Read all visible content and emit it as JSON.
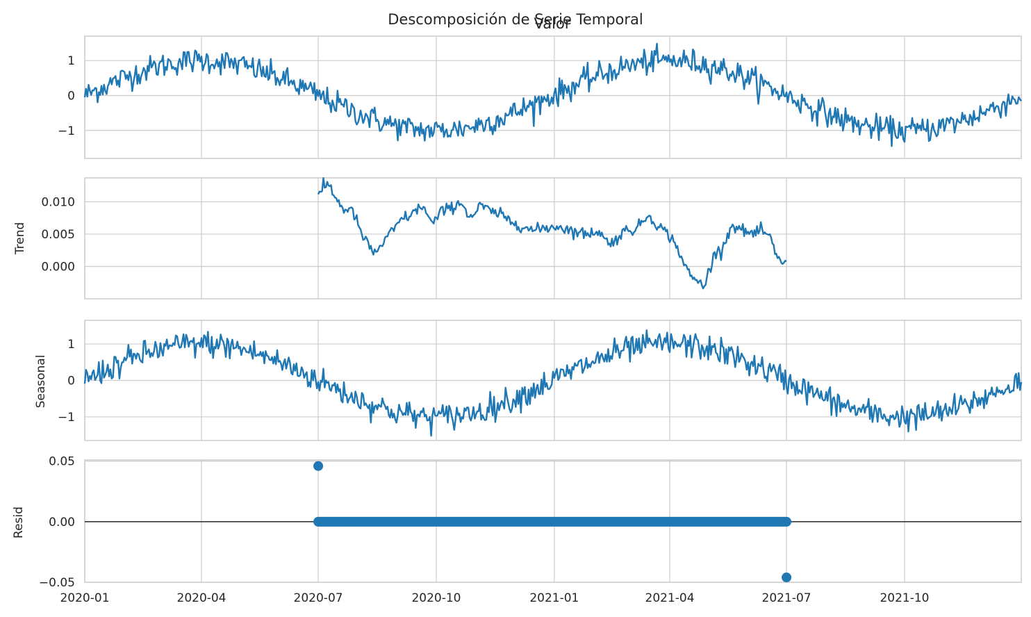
{
  "title": "Descomposición de Serie Temporal",
  "colors": {
    "series": "#1f77b4",
    "grid": "#cccccc",
    "text": "#262626",
    "zero_line": "#000000"
  },
  "x_ticks": [
    "2020-01",
    "2020-04",
    "2020-07",
    "2020-10",
    "2021-01",
    "2021-04",
    "2021-07",
    "2021-10"
  ],
  "chart_data": [
    {
      "type": "line",
      "panel": "observed",
      "title": "Valor",
      "ylabel": "",
      "x_range": [
        "2020-01-01",
        "2021-12-31"
      ],
      "ylim": [
        -1.8,
        1.7
      ],
      "yticks": [
        1,
        0,
        -1
      ],
      "ytick_labels": [
        "1",
        "0",
        "−1"
      ],
      "grid": true,
      "series": [
        {
          "model": "sinusoid",
          "amplitude": 1.0,
          "period_days": 365,
          "peak_date": "2020-04-01",
          "noise_sd": 0.18,
          "start": "2020-01-01",
          "end": "2021-12-31",
          "min_observed": -1.65,
          "max_observed": 1.52
        }
      ]
    },
    {
      "type": "line",
      "panel": "trend",
      "ylabel": "Trend",
      "x_range": [
        "2020-01-01",
        "2021-12-31"
      ],
      "ylim": [
        -0.005,
        0.0137
      ],
      "yticks": [
        0.01,
        0.005,
        0.0
      ],
      "ytick_labels": [
        "0.010",
        "0.005",
        "0.000"
      ],
      "grid": true,
      "series": [
        {
          "dates": [
            "2020-07-01",
            "2020-07-05",
            "2020-07-09",
            "2020-07-15",
            "2020-07-20",
            "2020-07-28",
            "2020-08-05",
            "2020-08-10",
            "2020-08-14",
            "2020-08-20",
            "2020-08-28",
            "2020-09-05",
            "2020-09-12",
            "2020-09-20",
            "2020-09-28",
            "2020-10-05",
            "2020-10-12",
            "2020-10-20",
            "2020-10-28",
            "2020-11-05",
            "2020-11-12",
            "2020-11-20",
            "2020-11-28",
            "2020-12-05",
            "2020-12-15",
            "2020-12-25",
            "2021-01-05",
            "2021-01-15",
            "2021-01-25",
            "2021-02-05",
            "2021-02-12",
            "2021-02-20",
            "2021-02-28",
            "2021-03-05",
            "2021-03-15",
            "2021-03-25",
            "2021-04-02",
            "2021-04-08",
            "2021-04-14",
            "2021-04-20",
            "2021-04-28",
            "2021-05-05",
            "2021-05-12",
            "2021-05-20",
            "2021-05-28",
            "2021-06-05",
            "2021-06-12",
            "2021-06-18",
            "2021-06-24",
            "2021-07-01"
          ],
          "values": [
            0.0107,
            0.0122,
            0.0128,
            0.0105,
            0.009,
            0.0085,
            0.0045,
            0.003,
            0.002,
            0.0035,
            0.0055,
            0.0075,
            0.008,
            0.0095,
            0.0065,
            0.0085,
            0.009,
            0.01,
            0.0075,
            0.0095,
            0.0085,
            0.008,
            0.007,
            0.0065,
            0.0055,
            0.006,
            0.0062,
            0.0055,
            0.005,
            0.0055,
            0.0035,
            0.0045,
            0.006,
            0.0055,
            0.008,
            0.006,
            0.0045,
            0.0025,
            -0.0005,
            -0.002,
            -0.003,
            0.0015,
            0.003,
            0.0065,
            0.0055,
            0.005,
            0.0055,
            0.0045,
            0.001,
            0.0008
          ]
        }
      ]
    },
    {
      "type": "line",
      "panel": "seasonal",
      "ylabel": "Seasonal",
      "x_range": [
        "2020-01-01",
        "2021-12-31"
      ],
      "ylim": [
        -1.65,
        1.65
      ],
      "yticks": [
        1,
        0,
        -1
      ],
      "ytick_labels": [
        "1",
        "0",
        "−1"
      ],
      "grid": true,
      "series": [
        {
          "model": "sinusoid",
          "amplitude": 1.0,
          "period_days": 365,
          "peak_date": "2020-04-01",
          "noise_sd": 0.18,
          "start": "2020-01-01",
          "end": "2021-12-31"
        }
      ]
    },
    {
      "type": "scatter",
      "panel": "resid",
      "ylabel": "Resid",
      "x_range": [
        "2020-01-01",
        "2021-12-31"
      ],
      "ylim": [
        -0.05,
        0.051
      ],
      "yticks": [
        0.05,
        0.0,
        -0.05
      ],
      "ytick_labels": [
        "0.05",
        "0.00",
        "−0.05"
      ],
      "grid": true,
      "zero_line": true,
      "series": [
        {
          "points": [
            {
              "x": "2020-07-01",
              "y": 0.046
            },
            {
              "x": "2021-07-01",
              "y": -0.046
            }
          ],
          "dense_run": {
            "start": "2020-07-01",
            "end": "2021-07-01",
            "y": 0.0
          }
        }
      ]
    }
  ]
}
